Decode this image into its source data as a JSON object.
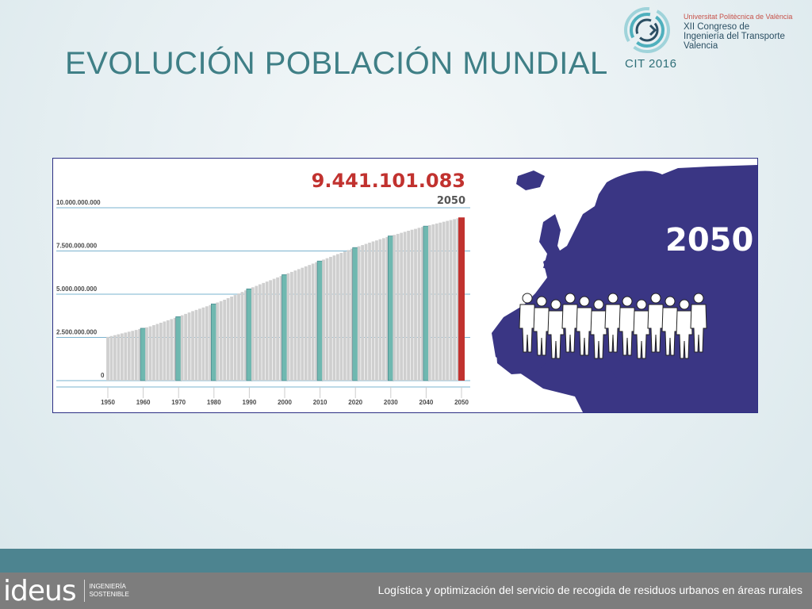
{
  "slide": {
    "title": "EVOLUCIÓN POBLACIÓN MUNDIAL"
  },
  "logo": {
    "university": "Universitat Politècnica de València",
    "congress_lines": [
      "XII Congreso de",
      "Ingeniería del Transporte",
      "Valencia"
    ],
    "event": "CIT 2016"
  },
  "chart_data": {
    "type": "bar",
    "title": "9.441.101.083",
    "subtitle": "2050",
    "highlight_value": 9441101083,
    "highlight_year": 2050,
    "ylim": [
      0,
      10000000000
    ],
    "y_ticks": [
      {
        "value": 0,
        "label": "0"
      },
      {
        "value": 2500000000,
        "label": "2.500.000.000"
      },
      {
        "value": 5000000000,
        "label": "5.000.000.000"
      },
      {
        "value": 7500000000,
        "label": "7.500.000.000"
      },
      {
        "value": 10000000000,
        "label": "10.000.000.000"
      }
    ],
    "x_ticks": [
      "1950",
      "1960",
      "1970",
      "1980",
      "1990",
      "2000",
      "2010",
      "2020",
      "2030",
      "2040",
      "2050"
    ],
    "years": [
      1950,
      1951,
      1952,
      1953,
      1954,
      1955,
      1956,
      1957,
      1958,
      1959,
      1960,
      1961,
      1962,
      1963,
      1964,
      1965,
      1966,
      1967,
      1968,
      1969,
      1970,
      1971,
      1972,
      1973,
      1974,
      1975,
      1976,
      1977,
      1978,
      1979,
      1980,
      1981,
      1982,
      1983,
      1984,
      1985,
      1986,
      1987,
      1988,
      1989,
      1990,
      1991,
      1992,
      1993,
      1994,
      1995,
      1996,
      1997,
      1998,
      1999,
      2000,
      2001,
      2002,
      2003,
      2004,
      2005,
      2006,
      2007,
      2008,
      2009,
      2010,
      2011,
      2012,
      2013,
      2014,
      2015,
      2016,
      2017,
      2018,
      2019,
      2020,
      2021,
      2022,
      2023,
      2024,
      2025,
      2026,
      2027,
      2028,
      2029,
      2030,
      2031,
      2032,
      2033,
      2034,
      2035,
      2036,
      2037,
      2038,
      2039,
      2040,
      2041,
      2042,
      2043,
      2044,
      2045,
      2046,
      2047,
      2048,
      2049,
      2050
    ],
    "values": [
      2530000000,
      2580000000,
      2630000000,
      2680000000,
      2730000000,
      2780000000,
      2830000000,
      2880000000,
      2930000000,
      2980000000,
      3030000000,
      3080000000,
      3140000000,
      3210000000,
      3280000000,
      3350000000,
      3420000000,
      3490000000,
      3560000000,
      3630000000,
      3700000000,
      3780000000,
      3860000000,
      3940000000,
      4020000000,
      4090000000,
      4160000000,
      4230000000,
      4300000000,
      4370000000,
      4440000000,
      4520000000,
      4600000000,
      4680000000,
      4770000000,
      4860000000,
      4950000000,
      5040000000,
      5130000000,
      5220000000,
      5310000000,
      5400000000,
      5480000000,
      5570000000,
      5650000000,
      5730000000,
      5810000000,
      5890000000,
      5970000000,
      6050000000,
      6130000000,
      6210000000,
      6290000000,
      6370000000,
      6450000000,
      6530000000,
      6610000000,
      6690000000,
      6770000000,
      6850000000,
      6920000000,
      7000000000,
      7080000000,
      7160000000,
      7240000000,
      7320000000,
      7390000000,
      7470000000,
      7550000000,
      7630000000,
      7700000000,
      7770000000,
      7840000000,
      7910000000,
      7980000000,
      8050000000,
      8110000000,
      8180000000,
      8240000000,
      8310000000,
      8370000000,
      8430000000,
      8490000000,
      8550000000,
      8610000000,
      8670000000,
      8730000000,
      8780000000,
      8840000000,
      8890000000,
      8940000000,
      8990000000,
      9040000000,
      9090000000,
      9140000000,
      9190000000,
      9240000000,
      9290000000,
      9340000000,
      9390000000,
      9441101083
    ],
    "grid": true,
    "colors": {
      "bar": "#cfcfcf",
      "decade": "#6fb8b0",
      "highlight": "#c1322f",
      "grid": "#7ab3cf",
      "axis_text": "#4a4a4a",
      "title": "#c1322f",
      "subtitle": "#555555"
    }
  },
  "map": {
    "label": "2050",
    "colors": {
      "land": "#3a3684",
      "people": "#ffffff"
    }
  },
  "footer": {
    "brand": "ideus",
    "tagline_lines": [
      "INGENIERÍA",
      "SOSTENIBLE"
    ],
    "caption": "Logística y optimización del servicio de recogida de residuos urbanos en áreas rurales"
  }
}
